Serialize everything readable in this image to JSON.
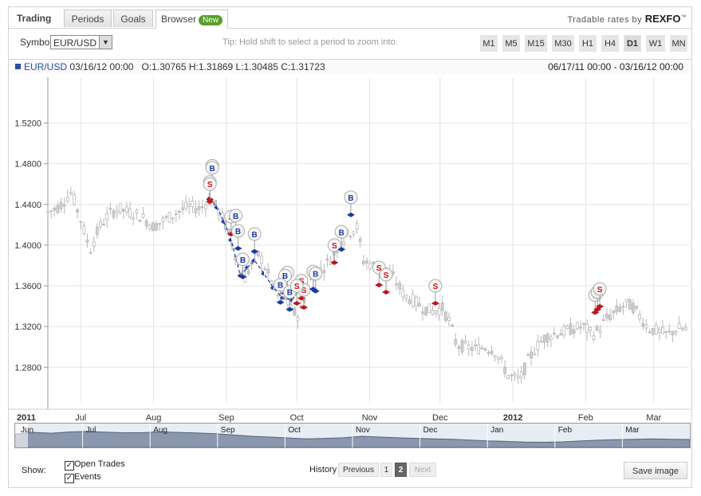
{
  "tabs": {
    "title": "Trading",
    "items": [
      {
        "label": "Periods",
        "active": false
      },
      {
        "label": "Goals",
        "active": false
      },
      {
        "label": "Browser",
        "active": true,
        "badge": "New"
      }
    ]
  },
  "brand": {
    "prefix": "Tradable rates by",
    "name": "REXFO",
    "mark": "™"
  },
  "toolbar": {
    "symbol_label": "Symbol",
    "symbol_value": "EUR/USD",
    "tip": "Tip: Hold shift to select a period to zoom into.",
    "timeframes": [
      "M1",
      "M5",
      "M15",
      "M30",
      "H1",
      "H4",
      "D1",
      "W1",
      "MN"
    ],
    "selected_timeframe": "D1"
  },
  "infobar": {
    "symbol": "EUR/USD",
    "datetime": "03/16/12 00:00",
    "ohlc": "O:1.30765 H:1.31869 L:1.30485 C:1.31723",
    "range": "06/17/11 00:00 - 03/16/12 00:00"
  },
  "chart_data": {
    "type": "candlestick",
    "y_ticks": [
      "1.5200",
      "1.4800",
      "1.4400",
      "1.4000",
      "1.3600",
      "1.3200",
      "1.2800"
    ],
    "y_tick_values": [
      1.52,
      1.48,
      1.44,
      1.4,
      1.36,
      1.32,
      1.28
    ],
    "ylim": [
      1.245,
      1.565
    ],
    "x_month_labels": [
      {
        "label": "2011",
        "bold": true,
        "day": 0
      },
      {
        "label": "Jul",
        "bold": false,
        "day": 14
      },
      {
        "label": "Aug",
        "bold": false,
        "day": 45
      },
      {
        "label": "Sep",
        "bold": false,
        "day": 76
      },
      {
        "label": "Oct",
        "bold": false,
        "day": 106
      },
      {
        "label": "Nov",
        "bold": false,
        "day": 137
      },
      {
        "label": "Dec",
        "bold": false,
        "day": 167
      },
      {
        "label": "2012",
        "bold": true,
        "day": 198
      },
      {
        "label": "Feb",
        "bold": false,
        "day": 229
      },
      {
        "label": "Mar",
        "bold": false,
        "day": 258
      }
    ],
    "total_days": 273,
    "waypoints": [
      [
        0,
        1.432
      ],
      [
        5,
        1.438
      ],
      [
        10,
        1.452
      ],
      [
        14,
        1.425
      ],
      [
        18,
        1.395
      ],
      [
        22,
        1.418
      ],
      [
        26,
        1.43
      ],
      [
        30,
        1.436
      ],
      [
        35,
        1.432
      ],
      [
        40,
        1.428
      ],
      [
        45,
        1.418
      ],
      [
        50,
        1.425
      ],
      [
        55,
        1.432
      ],
      [
        60,
        1.438
      ],
      [
        65,
        1.436
      ],
      [
        69,
        1.445
      ],
      [
        72,
        1.437
      ],
      [
        75,
        1.423
      ],
      [
        78,
        1.405
      ],
      [
        81,
        1.382
      ],
      [
        84,
        1.368
      ],
      [
        87,
        1.382
      ],
      [
        90,
        1.392
      ],
      [
        94,
        1.37
      ],
      [
        98,
        1.35
      ],
      [
        101,
        1.348
      ],
      [
        104,
        1.335
      ],
      [
        107,
        1.33
      ],
      [
        110,
        1.355
      ],
      [
        113,
        1.37
      ],
      [
        116,
        1.375
      ],
      [
        120,
        1.385
      ],
      [
        124,
        1.4
      ],
      [
        128,
        1.412
      ],
      [
        132,
        1.418
      ],
      [
        134,
        1.385
      ],
      [
        137,
        1.382
      ],
      [
        140,
        1.378
      ],
      [
        144,
        1.378
      ],
      [
        148,
        1.365
      ],
      [
        152,
        1.35
      ],
      [
        156,
        1.345
      ],
      [
        160,
        1.338
      ],
      [
        164,
        1.335
      ],
      [
        168,
        1.338
      ],
      [
        171,
        1.325
      ],
      [
        174,
        1.302
      ],
      [
        178,
        1.3
      ],
      [
        182,
        1.298
      ],
      [
        186,
        1.3
      ],
      [
        190,
        1.297
      ],
      [
        193,
        1.285
      ],
      [
        196,
        1.272
      ],
      [
        200,
        1.268
      ],
      [
        202,
        1.272
      ],
      [
        204,
        1.285
      ],
      [
        208,
        1.3
      ],
      [
        212,
        1.31
      ],
      [
        216,
        1.313
      ],
      [
        220,
        1.315
      ],
      [
        224,
        1.318
      ],
      [
        228,
        1.32
      ],
      [
        232,
        1.312
      ],
      [
        235,
        1.318
      ],
      [
        238,
        1.328
      ],
      [
        242,
        1.335
      ],
      [
        246,
        1.342
      ],
      [
        249,
        1.34
      ],
      [
        252,
        1.33
      ],
      [
        256,
        1.318
      ],
      [
        260,
        1.315
      ],
      [
        264,
        1.312
      ],
      [
        268,
        1.318
      ],
      [
        273,
        1.317
      ]
    ],
    "events": [
      {
        "label": "B",
        "color": "#1a3a9e",
        "day": 70,
        "price": 1.478
      },
      {
        "label": "B",
        "color": "#1a3a9e",
        "day": 70,
        "price": 1.476
      },
      {
        "label": "S",
        "color": "#c0141b",
        "day": 69,
        "price": 1.462
      },
      {
        "label": "S",
        "color": "#c0141b",
        "day": 69,
        "price": 1.46
      },
      {
        "label": "S",
        "color": "#c0141b",
        "day": 78,
        "price": 1.428
      },
      {
        "label": "B",
        "color": "#1a3a9e",
        "day": 80,
        "price": 1.429
      },
      {
        "label": "B",
        "color": "#1a3a9e",
        "day": 81,
        "price": 1.414
      },
      {
        "label": "B",
        "color": "#1a3a9e",
        "day": 88,
        "price": 1.411
      },
      {
        "label": "B",
        "color": "#1a3a9e",
        "day": 83,
        "price": 1.386
      },
      {
        "label": "B",
        "color": "#1a3a9e",
        "day": 102,
        "price": 1.373
      },
      {
        "label": "B",
        "color": "#1a3a9e",
        "day": 101,
        "price": 1.37
      },
      {
        "label": "B",
        "color": "#1a3a9e",
        "day": 99,
        "price": 1.361
      },
      {
        "label": "B",
        "color": "#1a3a9e",
        "day": 103,
        "price": 1.354
      },
      {
        "label": "S",
        "color": "#c0141b",
        "day": 108,
        "price": 1.365
      },
      {
        "label": "S",
        "color": "#c0141b",
        "day": 109,
        "price": 1.356
      },
      {
        "label": "S",
        "color": "#c0141b",
        "day": 106,
        "price": 1.36
      },
      {
        "label": "B",
        "color": "#1a3a9e",
        "day": 113,
        "price": 1.374
      },
      {
        "label": "B",
        "color": "#1a3a9e",
        "day": 114,
        "price": 1.372
      },
      {
        "label": "S",
        "color": "#c0141b",
        "day": 122,
        "price": 1.4
      },
      {
        "label": "B",
        "color": "#1a3a9e",
        "day": 125,
        "price": 1.413
      },
      {
        "label": "B",
        "color": "#1a3a9e",
        "day": 129,
        "price": 1.447
      },
      {
        "label": "S",
        "color": "#c0141b",
        "day": 141,
        "price": 1.378
      },
      {
        "label": "S",
        "color": "#c0141b",
        "day": 144,
        "price": 1.371
      },
      {
        "label": "S",
        "color": "#c0141b",
        "day": 165,
        "price": 1.36
      },
      {
        "label": "S",
        "color": "#c0141b",
        "day": 233,
        "price": 1.351
      },
      {
        "label": "S",
        "color": "#c0141b",
        "day": 234,
        "price": 1.354
      },
      {
        "label": "S",
        "color": "#c0141b",
        "day": 235,
        "price": 1.357
      }
    ],
    "trade_lines": [
      {
        "color": "#1a3a9e",
        "points": [
          [
            69,
            1.446
          ],
          [
            72,
            1.437
          ],
          [
            75,
            1.423
          ],
          [
            78,
            1.405
          ],
          [
            82,
            1.37
          ],
          [
            85,
            1.378
          ],
          [
            88,
            1.385
          ],
          [
            92,
            1.372
          ],
          [
            96,
            1.358
          ],
          [
            100,
            1.348
          ],
          [
            104,
            1.346
          ],
          [
            108,
            1.36
          ]
        ]
      }
    ],
    "grid": true
  },
  "navigator": {
    "labels": [
      "Jun",
      "Jul",
      "Aug",
      "Sep",
      "Oct",
      "Nov",
      "Dec",
      "Jan",
      "Feb",
      "Mar"
    ],
    "profile": [
      0.62,
      0.7,
      0.66,
      0.72,
      0.74,
      0.71,
      0.68,
      0.69,
      0.72,
      0.7,
      0.67,
      0.64,
      0.58,
      0.52,
      0.48,
      0.44,
      0.4,
      0.42,
      0.45,
      0.52,
      0.48,
      0.45,
      0.42,
      0.4,
      0.38,
      0.34,
      0.3,
      0.28,
      0.25,
      0.24,
      0.26,
      0.3,
      0.34,
      0.36,
      0.38,
      0.4,
      0.38,
      0.37
    ]
  },
  "footer": {
    "show_label": "Show:",
    "options": [
      {
        "label": "Open Trades",
        "checked": true
      },
      {
        "label": "Events",
        "checked": true
      }
    ],
    "history_label": "History",
    "prev_label": "Previous",
    "pages": [
      "1",
      "2"
    ],
    "current_page": "2",
    "next_label": "Next",
    "save_label": "Save image"
  }
}
